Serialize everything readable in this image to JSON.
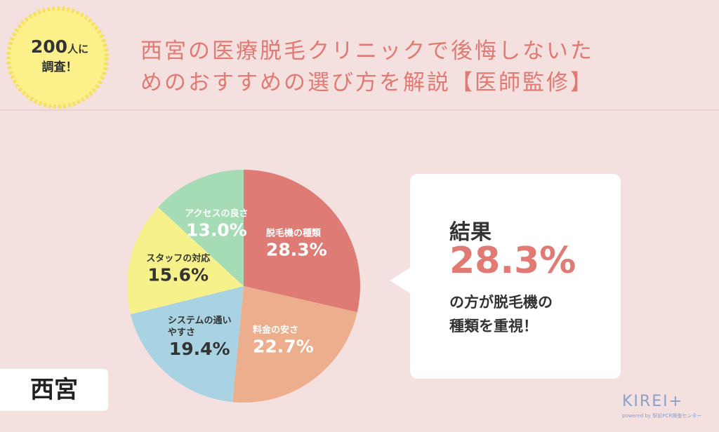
{
  "badge": {
    "number": "200",
    "unit": "人に",
    "line2": "調査！"
  },
  "header": {
    "title_lines": [
      "西宮の医療脱毛クリニックで後悔しないた",
      "めのおすすめの選び方を解説【医師監修】"
    ]
  },
  "chart_data": {
    "type": "pie",
    "categories": [
      "脱毛機の種類",
      "料金の安さ",
      "システムの通い\nやすさ",
      "スタッフの対応",
      "アクセスの良さ"
    ],
    "values": [
      28.3,
      22.7,
      19.4,
      15.6,
      13.0
    ],
    "value_labels": [
      "28.3%",
      "22.7%",
      "19.4%",
      "15.6%",
      "13.0%"
    ],
    "colors": [
      "#de7b74",
      "#ecae8c",
      "#a9d3e3",
      "#f6f18a",
      "#a6dcb5"
    ]
  },
  "callout": {
    "title": "結果",
    "value_label": "28.3%",
    "text_lines": [
      "の方が脱毛機の",
      "種類を重視！"
    ]
  },
  "location": "西宮",
  "logo": {
    "name": "KIREI+",
    "sub": "powered by 駅前PCR検査センター"
  }
}
